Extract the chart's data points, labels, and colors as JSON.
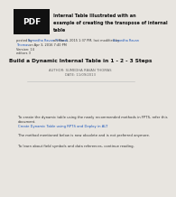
{
  "bg_color": "#e8e5e0",
  "pdf_box_color": "#111111",
  "pdf_text": "PDF",
  "header_lines": [
    "Internal Table IIlustrated with an",
    "example of creating the transpose of internal",
    "table"
  ],
  "meta_text1a": "posted by ",
  "meta_text1b": "Sumedha Ravan Thomas",
  "meta_text1c": " on Mar 3, 2015 1:37 PM, last modified by ",
  "meta_text1d": "Sumedha Ravan",
  "meta_text2a": "Thomas",
  "meta_text2b": " on Apr 3, 2016 7:40 PM",
  "meta_text3": "Version: 14",
  "meta_text4": "editors 3",
  "main_title": "Build a Dynamic Internal Table in 1 - 2 - 3 Steps",
  "author_line": "AUTHOR: SUMEDHA RAVAN THOMAS",
  "date_line": "DATE: 11/09/2013",
  "body_line1": "To create the dynamic table using the newly recommended methods in FPTS, refer this",
  "body_line2": "document.",
  "body_link": "Create Dynamic Table using RPTS and Deploy in ALT",
  "body_line3": "The method mentioned below is now obsolete and is not preferred anymore.",
  "body_line4": "To learn about field symbols and data references, continue reading.",
  "text_color": "#333333",
  "link_color": "#1a55bb",
  "meta_link_color": "#1a55bb",
  "title_color": "#111111"
}
